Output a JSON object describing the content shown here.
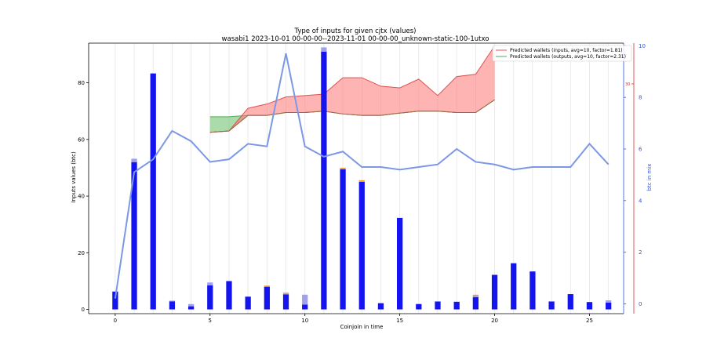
{
  "chart_data": {
    "type": "bar+line+area",
    "title": "Type of inputs for given cjtx (values)",
    "subtitle": "wasabi1 2023-10-01 00-00-00--2023-11-01 00-00-00_unknown-static-100-1utxo",
    "xlabel": "Coinjoin in time",
    "ylabel": "Inputs values (btc)",
    "y2label": "btc in mix",
    "xlim": [
      -1.4,
      26.8
    ],
    "ylim": [
      -1.5,
      94
    ],
    "y2lim": [
      -0.38,
      10.1
    ],
    "xticks": [
      0,
      5,
      10,
      15,
      20,
      25
    ],
    "yticks": [
      0,
      20,
      40,
      60,
      80
    ],
    "y2ticks": [
      0,
      2,
      4,
      6,
      8,
      10
    ],
    "grid": "vertical",
    "legend_position": "top-right",
    "colors": {
      "bars": "#1414f0",
      "bars_light": "#a0a0ee",
      "bars_orange": "#f0a030",
      "line": "#7b97e6",
      "area_inputs": "#ff7777",
      "area_inputs_line": "#e05050",
      "area_outputs": "#66bb66",
      "area_outputs_line": "#55aa55",
      "right_axis": "#3355dd",
      "far_right_axis": "#dd3333"
    },
    "x": [
      0,
      1,
      2,
      3,
      4,
      5,
      6,
      7,
      8,
      9,
      10,
      11,
      12,
      13,
      14,
      15,
      16,
      17,
      18,
      19,
      20,
      21,
      22,
      23,
      24,
      25,
      26
    ],
    "bars_main": [
      6.3,
      52,
      83.3,
      2.8,
      1.1,
      8.5,
      10,
      4.5,
      8,
      5.3,
      1.7,
      91,
      49.5,
      45,
      2.2,
      32.3,
      1.9,
      2.8,
      2.7,
      4.3,
      12.2,
      16.3,
      13.4,
      2.8,
      5.4,
      2.6,
      2.4
    ],
    "bars_light_stack": [
      0,
      1.2,
      0,
      0.3,
      0.8,
      1,
      0,
      0,
      0,
      0.3,
      3.5,
      1.5,
      0,
      0,
      0,
      0,
      0,
      0,
      0,
      0.7,
      0,
      0,
      0,
      0,
      0,
      0,
      0.8
    ],
    "bars_orange_stack": [
      0,
      0,
      0,
      0,
      0,
      0,
      0,
      0,
      0.4,
      0.3,
      0,
      0,
      0.5,
      0.6,
      0,
      0,
      0,
      0,
      0,
      0.2,
      0,
      0,
      0,
      0,
      0,
      0,
      0
    ],
    "btc_in_mix": [
      0.2,
      5.1,
      5.6,
      6.7,
      6.3,
      5.5,
      5.6,
      6.2,
      6.1,
      9.7,
      6.1,
      5.7,
      5.9,
      5.3,
      5.3,
      5.2,
      5.3,
      5.4,
      6.0,
      5.5,
      5.4,
      5.2,
      5.3,
      5.3,
      5.3,
      6.2,
      5.4
    ],
    "series": [
      {
        "name": "Predicted wallets (inputs, avg=10, factor=1.81)",
        "x": [
          5,
          6,
          7,
          8,
          9,
          10,
          11,
          12,
          13,
          14,
          15,
          16,
          17,
          18,
          19,
          20
        ],
        "upper": [
          62.5,
          63,
          71,
          72.5,
          75,
          75.5,
          76,
          81.8,
          81.8,
          78.8,
          78.2,
          81.3,
          75.5,
          82.2,
          83,
          93
        ],
        "lower": [
          62.5,
          63,
          68.5,
          68.5,
          69.5,
          69.5,
          70,
          69,
          68.5,
          68.5,
          69.3,
          70,
          70,
          69.5,
          69.5,
          74
        ]
      },
      {
        "name": "Predicted wallets (outputs, avg=10, factor=2.31)",
        "x": [
          5,
          6,
          7,
          8,
          9,
          10,
          11,
          12,
          13,
          14,
          15,
          16,
          17,
          18,
          19,
          20
        ],
        "upper": [
          68,
          68,
          68.5,
          68.5,
          69.5,
          69.5,
          70,
          69,
          68.5,
          68.5,
          69.3,
          70,
          70,
          69.5,
          69.5,
          74
        ],
        "lower": [
          62.5,
          63,
          68.5,
          68.5,
          69.5,
          69.5,
          70,
          69,
          68.5,
          68.5,
          69.3,
          70,
          70,
          69.5,
          69.5,
          74
        ]
      }
    ],
    "far_right_tick_label": "30"
  }
}
